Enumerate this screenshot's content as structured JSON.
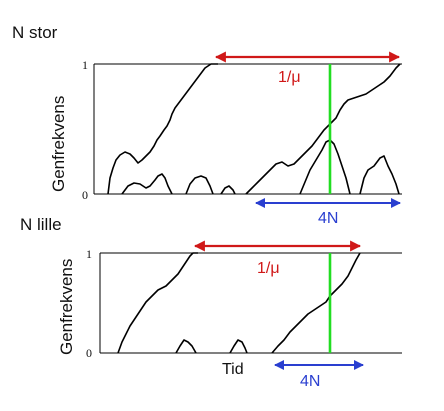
{
  "top": {
    "title": "N stor",
    "ylabel": "Genfrekvens",
    "tick_top": "1",
    "tick_bottom": "0",
    "red_label": "1/μ",
    "blue_label": "4N"
  },
  "bottom": {
    "title": "N lille",
    "ylabel": "Genfrekvens",
    "tick_top": "1",
    "tick_bottom": "0",
    "red_label": "1/μ",
    "blue_label": "4N",
    "xlabel": "Tid"
  },
  "colors": {
    "red_arrow": "#d01818",
    "blue_arrow": "#2a3fd0",
    "green_line": "#22dd22",
    "trajectory": "#000000"
  }
}
